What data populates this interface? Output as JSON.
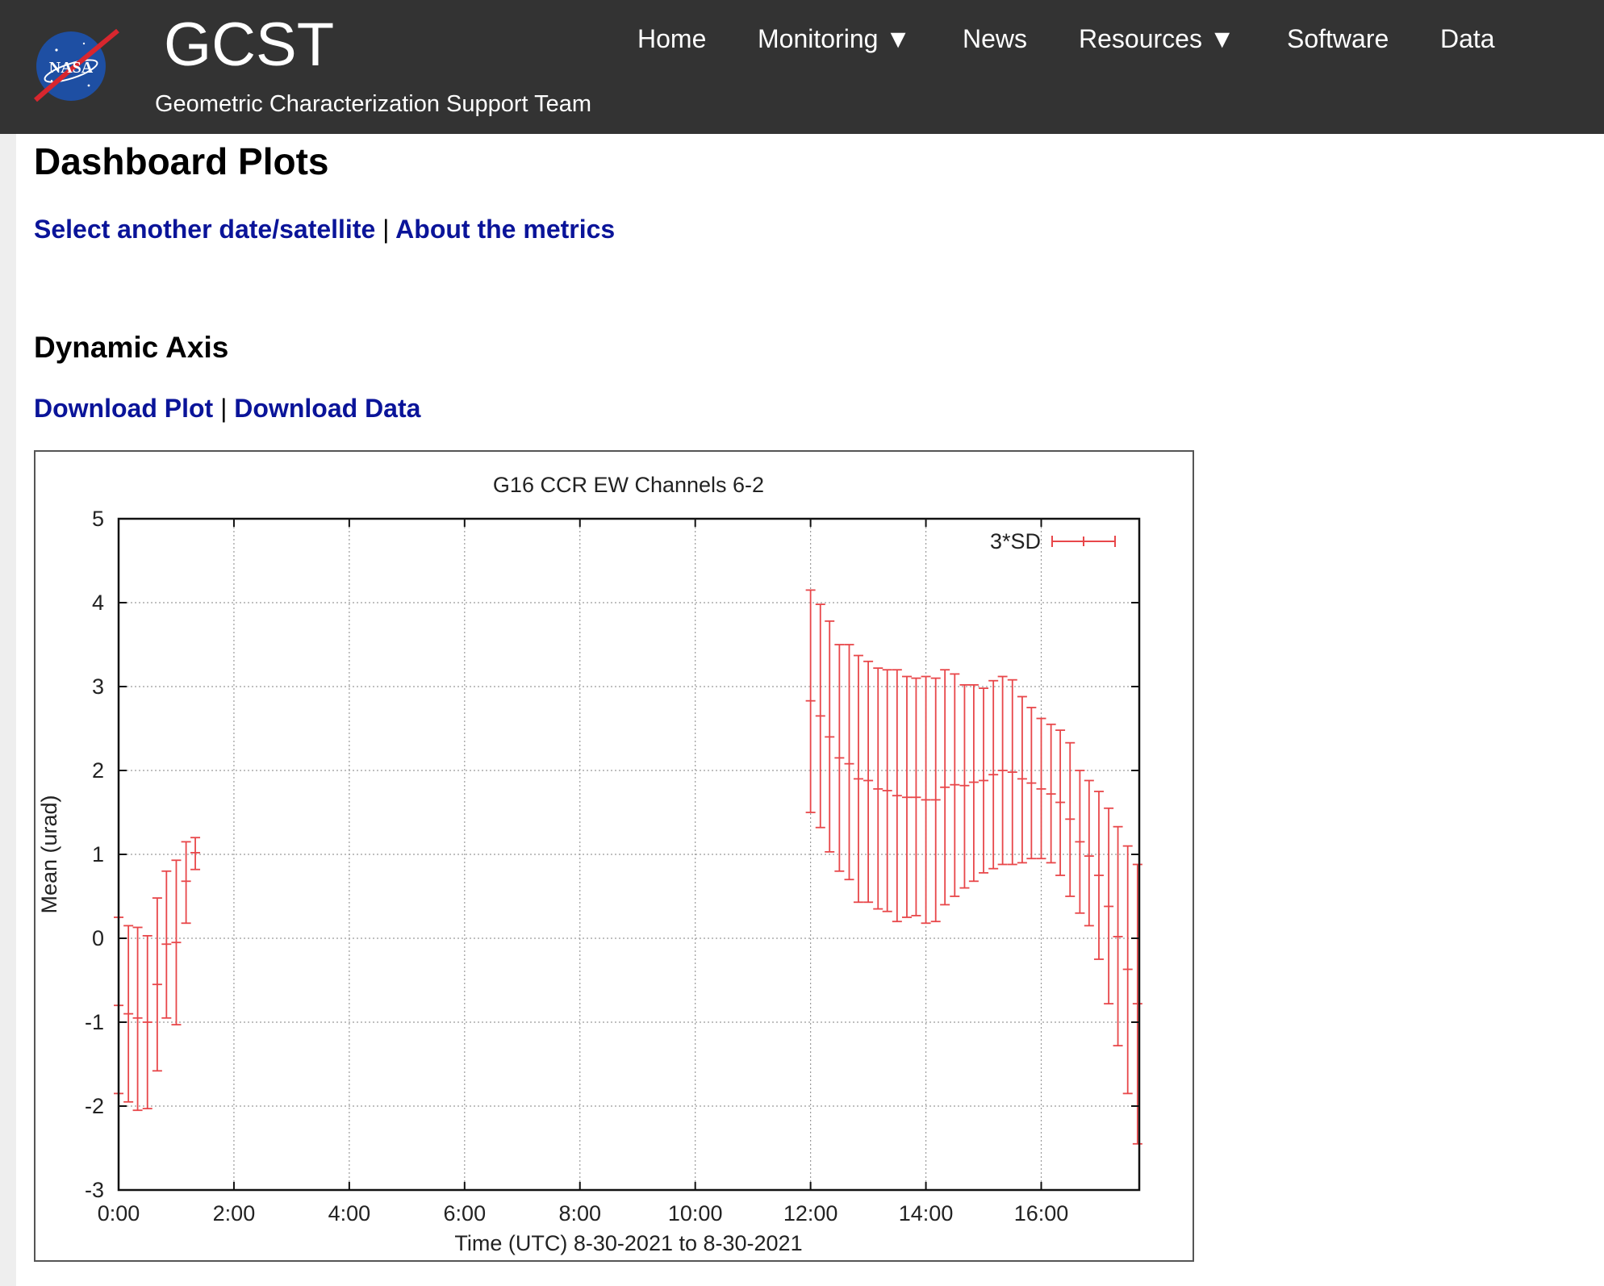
{
  "header": {
    "logo_text": "NASA",
    "title": "GCST",
    "subtitle": "Geometric Characterization Support Team"
  },
  "nav": {
    "items": [
      {
        "label": "Home"
      },
      {
        "label": "Monitoring ▼"
      },
      {
        "label": "News"
      },
      {
        "label": "Resources ▼"
      },
      {
        "label": "Software"
      },
      {
        "label": "Data"
      }
    ]
  },
  "main": {
    "page_title": "Dashboard Plots",
    "select_link": "Select another date/satellite",
    "about_link": "About the metrics",
    "separator": "|",
    "section_title": "Dynamic Axis",
    "download_plot": "Download Plot",
    "download_data": "Download Data"
  },
  "colors": {
    "header_bg": "#333333",
    "link": "#0a1499",
    "series": "#e8474a"
  },
  "chart_data": {
    "type": "scatter",
    "title": "G16 CCR EW Channels 6-2",
    "xlabel": "Time (UTC) 8-30-2021 to 8-30-2021",
    "ylabel": "Mean (urad)",
    "xlim": [
      0,
      17.7
    ],
    "ylim": [
      -3,
      5
    ],
    "xticks": [
      0,
      2,
      4,
      6,
      8,
      10,
      12,
      14,
      16
    ],
    "xtick_labels": [
      "0:00",
      "2:00",
      "4:00",
      "6:00",
      "8:00",
      "10:00",
      "12:00",
      "14:00",
      "16:00"
    ],
    "yticks": [
      -3,
      -2,
      -1,
      0,
      1,
      2,
      3,
      4,
      5
    ],
    "ytick_labels": [
      "-3",
      "-2",
      "-1",
      "0",
      "1",
      "2",
      "3",
      "4",
      "5"
    ],
    "grid": true,
    "legend_position": "top-right",
    "series": [
      {
        "name": "3*SD",
        "color": "#e8474a",
        "points": [
          {
            "x": 0.0,
            "y": -0.8,
            "lo": -1.85,
            "hi": 0.25
          },
          {
            "x": 0.17,
            "y": -0.9,
            "lo": -1.95,
            "hi": 0.15
          },
          {
            "x": 0.33,
            "y": -0.95,
            "lo": -2.05,
            "hi": 0.13
          },
          {
            "x": 0.5,
            "y": -1.0,
            "lo": -2.03,
            "hi": 0.03
          },
          {
            "x": 0.67,
            "y": -0.55,
            "lo": -1.58,
            "hi": 0.48
          },
          {
            "x": 0.83,
            "y": -0.07,
            "lo": -0.95,
            "hi": 0.8
          },
          {
            "x": 1.0,
            "y": -0.05,
            "lo": -1.03,
            "hi": 0.93
          },
          {
            "x": 1.17,
            "y": 0.68,
            "lo": 0.18,
            "hi": 1.15
          },
          {
            "x": 1.33,
            "y": 1.02,
            "lo": 0.82,
            "hi": 1.2
          },
          {
            "x": 12.0,
            "y": 2.83,
            "lo": 1.5,
            "hi": 4.15
          },
          {
            "x": 12.17,
            "y": 2.65,
            "lo": 1.32,
            "hi": 3.98
          },
          {
            "x": 12.33,
            "y": 2.4,
            "lo": 1.03,
            "hi": 3.78
          },
          {
            "x": 12.5,
            "y": 2.15,
            "lo": 0.8,
            "hi": 3.5
          },
          {
            "x": 12.67,
            "y": 2.08,
            "lo": 0.7,
            "hi": 3.5
          },
          {
            "x": 12.83,
            "y": 1.9,
            "lo": 0.43,
            "hi": 3.37
          },
          {
            "x": 13.0,
            "y": 1.88,
            "lo": 0.43,
            "hi": 3.3
          },
          {
            "x": 13.17,
            "y": 1.78,
            "lo": 0.35,
            "hi": 3.22
          },
          {
            "x": 13.33,
            "y": 1.76,
            "lo": 0.32,
            "hi": 3.2
          },
          {
            "x": 13.5,
            "y": 1.7,
            "lo": 0.2,
            "hi": 3.2
          },
          {
            "x": 13.67,
            "y": 1.68,
            "lo": 0.25,
            "hi": 3.12
          },
          {
            "x": 13.83,
            "y": 1.68,
            "lo": 0.27,
            "hi": 3.1
          },
          {
            "x": 14.0,
            "y": 1.65,
            "lo": 0.18,
            "hi": 3.12
          },
          {
            "x": 14.17,
            "y": 1.65,
            "lo": 0.2,
            "hi": 3.1
          },
          {
            "x": 14.33,
            "y": 1.8,
            "lo": 0.4,
            "hi": 3.2
          },
          {
            "x": 14.5,
            "y": 1.83,
            "lo": 0.5,
            "hi": 3.15
          },
          {
            "x": 14.67,
            "y": 1.82,
            "lo": 0.6,
            "hi": 3.02
          },
          {
            "x": 14.83,
            "y": 1.86,
            "lo": 0.68,
            "hi": 3.02
          },
          {
            "x": 15.0,
            "y": 1.88,
            "lo": 0.78,
            "hi": 2.98
          },
          {
            "x": 15.17,
            "y": 1.95,
            "lo": 0.83,
            "hi": 3.07
          },
          {
            "x": 15.33,
            "y": 2.0,
            "lo": 0.88,
            "hi": 3.12
          },
          {
            "x": 15.5,
            "y": 1.98,
            "lo": 0.88,
            "hi": 3.08
          },
          {
            "x": 15.67,
            "y": 1.9,
            "lo": 0.9,
            "hi": 2.88
          },
          {
            "x": 15.83,
            "y": 1.85,
            "lo": 0.95,
            "hi": 2.75
          },
          {
            "x": 16.0,
            "y": 1.78,
            "lo": 0.95,
            "hi": 2.62
          },
          {
            "x": 16.17,
            "y": 1.72,
            "lo": 0.9,
            "hi": 2.55
          },
          {
            "x": 16.33,
            "y": 1.62,
            "lo": 0.75,
            "hi": 2.48
          },
          {
            "x": 16.5,
            "y": 1.42,
            "lo": 0.5,
            "hi": 2.33
          },
          {
            "x": 16.67,
            "y": 1.15,
            "lo": 0.3,
            "hi": 2.0
          },
          {
            "x": 16.83,
            "y": 0.98,
            "lo": 0.15,
            "hi": 1.88
          },
          {
            "x": 17.0,
            "y": 0.75,
            "lo": -0.25,
            "hi": 1.75
          },
          {
            "x": 17.17,
            "y": 0.38,
            "lo": -0.78,
            "hi": 1.55
          },
          {
            "x": 17.33,
            "y": 0.02,
            "lo": -1.28,
            "hi": 1.33
          },
          {
            "x": 17.5,
            "y": -0.37,
            "lo": -1.85,
            "hi": 1.1
          },
          {
            "x": 17.67,
            "y": -0.78,
            "lo": -2.45,
            "hi": 0.88
          }
        ]
      }
    ]
  }
}
